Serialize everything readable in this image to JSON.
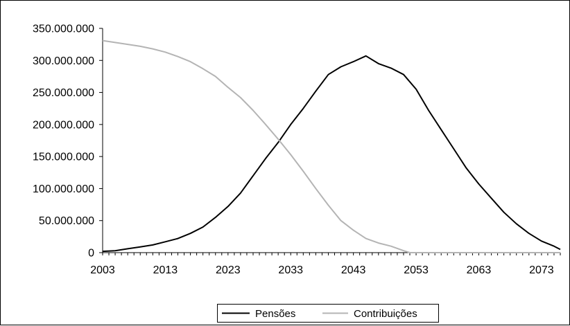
{
  "chart_data": {
    "type": "line",
    "title": "",
    "xlabel": "",
    "ylabel": "",
    "xlim": [
      2003,
      2076
    ],
    "ylim": [
      0,
      350000000
    ],
    "x_ticks": [
      2003,
      2013,
      2023,
      2033,
      2043,
      2053,
      2063,
      2073
    ],
    "x_tick_labels": [
      "2003",
      "2013",
      "2023",
      "2033",
      "2043",
      "2053",
      "2063",
      "2073"
    ],
    "y_ticks": [
      0,
      50000000,
      100000000,
      150000000,
      200000000,
      250000000,
      300000000,
      350000000
    ],
    "y_tick_labels": [
      "0",
      "50.000.000",
      "100.000.000",
      "150.000.000",
      "200.000.000",
      "250.000.000",
      "300.000.000",
      "350.000.000"
    ],
    "grid": false,
    "legend_position": "bottom-center",
    "series": [
      {
        "name": "Pensões",
        "color": "#000000",
        "x": [
          2003,
          2005,
          2007,
          2009,
          2011,
          2013,
          2015,
          2017,
          2019,
          2021,
          2023,
          2025,
          2027,
          2029,
          2031,
          2033,
          2035,
          2037,
          2039,
          2041,
          2043,
          2045,
          2047,
          2049,
          2051,
          2053,
          2055,
          2057,
          2059,
          2061,
          2063,
          2065,
          2067,
          2069,
          2071,
          2073,
          2075,
          2076
        ],
        "values": [
          2000000,
          3000000,
          6000000,
          9000000,
          12000000,
          17000000,
          22000000,
          30000000,
          40000000,
          55000000,
          72000000,
          93000000,
          120000000,
          147000000,
          172000000,
          200000000,
          225000000,
          252000000,
          278000000,
          290000000,
          298000000,
          307000000,
          295000000,
          288000000,
          278000000,
          255000000,
          222000000,
          192000000,
          162000000,
          132000000,
          107000000,
          85000000,
          63000000,
          45000000,
          30000000,
          18000000,
          10000000,
          5000000
        ]
      },
      {
        "name": "Contribuições",
        "color": "#b4b4b4",
        "x": [
          2003,
          2005,
          2007,
          2009,
          2011,
          2013,
          2015,
          2017,
          2019,
          2021,
          2023,
          2025,
          2027,
          2029,
          2031,
          2033,
          2035,
          2037,
          2039,
          2041,
          2043,
          2045,
          2047,
          2049,
          2051,
          2052,
          2055,
          2060,
          2065,
          2070,
          2075,
          2076
        ],
        "values": [
          331000000,
          328000000,
          325000000,
          322000000,
          318000000,
          313000000,
          306000000,
          298000000,
          287000000,
          275000000,
          258000000,
          242000000,
          222000000,
          200000000,
          177000000,
          153000000,
          127000000,
          100000000,
          74000000,
          50000000,
          35000000,
          22000000,
          15000000,
          10000000,
          3000000,
          0,
          0,
          0,
          0,
          0,
          0,
          0
        ]
      }
    ]
  }
}
